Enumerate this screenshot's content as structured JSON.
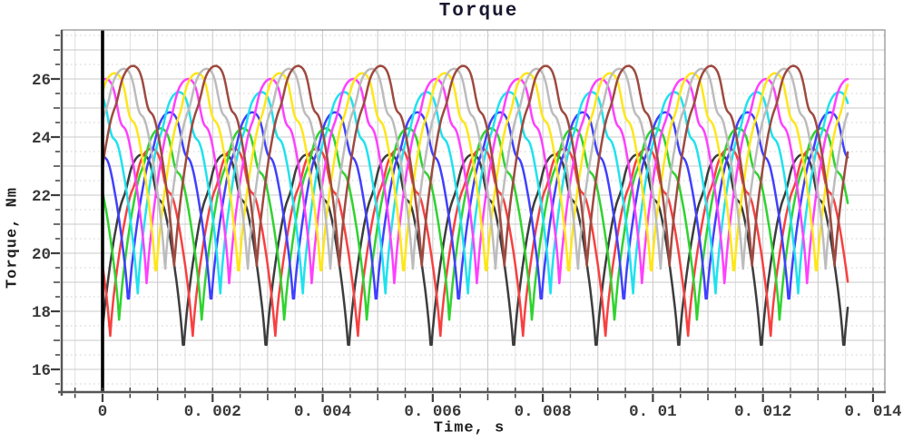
{
  "chart_data": {
    "type": "line",
    "title": "Torque",
    "xlabel": "Time, s",
    "ylabel": "Torque, Nm",
    "xlim": [
      -0.00074,
      0.01422
    ],
    "ylim": [
      15.22,
      27.69
    ],
    "grid": true,
    "legend": false,
    "x_ticks": [
      {
        "t": 0,
        "label": "0"
      },
      {
        "t": 0.002,
        "label": "0. 002"
      },
      {
        "t": 0.004,
        "label": "0. 004"
      },
      {
        "t": 0.006,
        "label": "0. 006"
      },
      {
        "t": 0.008,
        "label": "0. 008"
      },
      {
        "t": 0.01,
        "label": "0. 01"
      },
      {
        "t": 0.012,
        "label": "0. 012"
      },
      {
        "t": 0.014,
        "label": "0. 014"
      }
    ],
    "y_ticks": [
      {
        "v": 16,
        "label": "16"
      },
      {
        "v": 18,
        "label": "18"
      },
      {
        "v": 20,
        "label": "20"
      },
      {
        "v": 22,
        "label": "22"
      },
      {
        "v": 24,
        "label": "24"
      },
      {
        "v": 26,
        "label": "26"
      }
    ],
    "x_minor_step": 0.0005,
    "y_minor_step": 0.5,
    "zero_line_t": 0,
    "t_start": 0,
    "t_end": 0.01354,
    "period": 0.0015,
    "phase_step": 0.0001667,
    "sample_step": 2e-05,
    "waveform_note": "nine phase-shifted periodic torque-ripple traces; each hump has a sharp V minimum, rounded peak and slight shoulder on the falling edge",
    "series": [
      {
        "name": "trace-black",
        "color": "#3d3d3d",
        "peak": 23.4,
        "min": 16.45,
        "peak_time": 0.00072
      },
      {
        "name": "trace-red",
        "color": "#f84040",
        "peak": 23.6,
        "min": 17.0,
        "peak_time": 0.000887
      },
      {
        "name": "trace-green",
        "color": "#2fd32f",
        "peak": 24.3,
        "min": 17.55,
        "peak_time": 0.001053
      },
      {
        "name": "trace-blue",
        "color": "#4040ff",
        "peak": 24.85,
        "min": 18.05,
        "peak_time": 0.00122
      },
      {
        "name": "trace-cyan",
        "color": "#1fe2ee",
        "peak": 25.55,
        "min": 18.45,
        "peak_time": 0.001387
      },
      {
        "name": "trace-magenta",
        "color": "#ff40ff",
        "peak": 26.0,
        "min": 18.8,
        "peak_time": 0.001553
      },
      {
        "name": "trace-yellow",
        "color": "#ffe619",
        "peak": 26.2,
        "min": 19.0,
        "peak_time": 0.00172
      },
      {
        "name": "trace-gray",
        "color": "#bcbcbc",
        "peak": 26.35,
        "min": 19.3,
        "peak_time": 0.001887
      },
      {
        "name": "trace-brown",
        "color": "#9e4a40",
        "peak": 26.45,
        "min": 19.4,
        "peak_time": 0.002053
      }
    ],
    "colors": {
      "frame": "#9c9c9c",
      "axis": "#565656",
      "tick": "#3f3f3f",
      "tick_label": "#3a3a3a",
      "title": "#181830",
      "grid_major": "#c9c9c9",
      "grid_minor": "#e0e0e0",
      "grid_dotted": "#cfcfcf",
      "zero_line": "#000000",
      "background": "#ffffff"
    }
  }
}
